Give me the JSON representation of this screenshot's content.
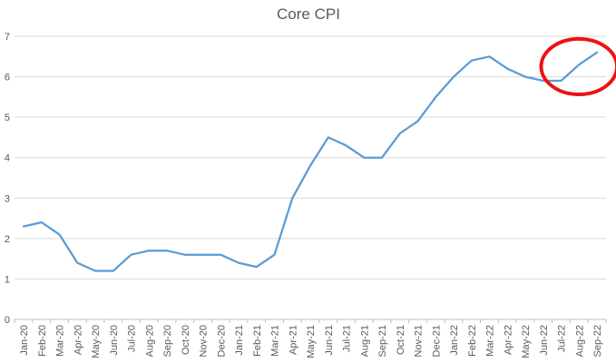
{
  "chart_data": {
    "type": "line",
    "title": "Core CPI",
    "xlabel": "",
    "ylabel": "",
    "categories": [
      "Jan-20",
      "Feb-20",
      "Mar-20",
      "Apr-20",
      "May-20",
      "Jun-20",
      "Jul-20",
      "Aug-20",
      "Sep-20",
      "Oct-20",
      "Nov-20",
      "Dec-20",
      "Jan-21",
      "Feb-21",
      "Mar-21",
      "Apr-21",
      "May-21",
      "Jun-21",
      "Jul-21",
      "Aug-21",
      "Sep-21",
      "Oct-21",
      "Nov-21",
      "Dec-21",
      "Jan-22",
      "Feb-22",
      "Mar-22",
      "Apr-22",
      "May-22",
      "Jun-22",
      "Jul-22",
      "Aug-22",
      "Sep-22"
    ],
    "series": [
      {
        "name": "Core CPI",
        "values": [
          2.3,
          2.4,
          2.1,
          1.4,
          1.2,
          1.2,
          1.6,
          1.7,
          1.7,
          1.6,
          1.6,
          1.6,
          1.4,
          1.3,
          1.6,
          3.0,
          3.8,
          4.5,
          4.3,
          4.0,
          4.0,
          4.6,
          4.9,
          5.5,
          6.0,
          6.4,
          6.5,
          6.2,
          6.0,
          5.9,
          5.9,
          6.3,
          6.6
        ]
      }
    ],
    "ylim": [
      0,
      7
    ],
    "yticks": [
      0,
      1,
      2,
      3,
      4,
      5,
      6,
      7
    ],
    "grid": "horizontal",
    "legend": "none",
    "x_label_rotation": -90,
    "annotation": {
      "shape": "ellipse",
      "color": "#ee1111",
      "around_categories": [
        "Jul-22",
        "Aug-22",
        "Sep-22"
      ]
    }
  },
  "colors": {
    "line": "#5B9BD5",
    "gridline": "#D9D9D9",
    "axis_line": "#BFBFBF",
    "tick_text": "#595959",
    "title_text": "#595959",
    "annotation": "#ee1111",
    "background": "#FFFFFF"
  }
}
